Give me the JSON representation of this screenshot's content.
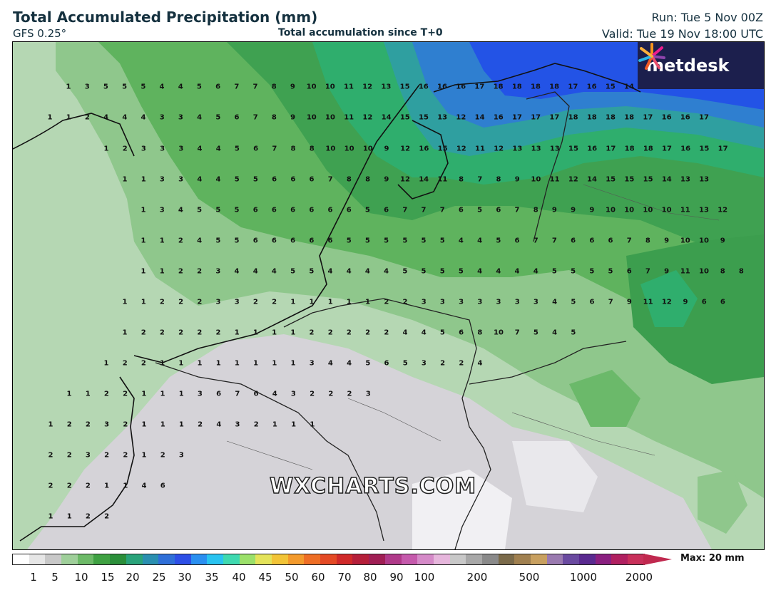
{
  "header": {
    "title": "Total Accumulated Precipitation (mm)",
    "model": "GFS 0.25°",
    "subtitle": "Total accumulation since T+0",
    "run": "Run: Tue 5 Nov 00Z",
    "valid": "Valid: Tue 19 Nov 18:00 UTC"
  },
  "logo": {
    "text": "metdesk"
  },
  "watermark": "WXCHARTS.COM",
  "legend": {
    "ticks": [
      "1",
      "5",
      "10",
      "15",
      "20",
      "25",
      "30",
      "35",
      "40",
      "45",
      "50",
      "60",
      "70",
      "80",
      "90",
      "100",
      "200",
      "500",
      "1000",
      "2000"
    ],
    "max_label": "Max: 20 mm"
  },
  "grid_values": [
    [
      "1",
      "3",
      "5",
      "5",
      "5",
      "4",
      "4",
      "5",
      "6",
      "7",
      "7",
      "8",
      "9",
      "10",
      "10",
      "11",
      "12",
      "13",
      "15",
      "16",
      "16",
      "16",
      "17",
      "18",
      "18",
      "18",
      "18",
      "17",
      "16",
      "15",
      "14"
    ],
    [
      "1",
      "1",
      "2",
      "4",
      "4",
      "4",
      "3",
      "3",
      "4",
      "5",
      "6",
      "7",
      "8",
      "9",
      "10",
      "10",
      "11",
      "12",
      "14",
      "15",
      "15",
      "13",
      "12",
      "14",
      "16",
      "17",
      "17",
      "17",
      "18",
      "18",
      "18",
      "18",
      "17",
      "16",
      "16",
      "17"
    ],
    [
      "1",
      "2",
      "3",
      "3",
      "3",
      "4",
      "4",
      "5",
      "6",
      "7",
      "8",
      "8",
      "10",
      "10",
      "10",
      "9",
      "12",
      "16",
      "15",
      "12",
      "11",
      "12",
      "13",
      "13",
      "13",
      "15",
      "16",
      "17",
      "18",
      "18",
      "17",
      "16",
      "15",
      "17"
    ],
    [
      "1",
      "1",
      "3",
      "3",
      "4",
      "4",
      "5",
      "5",
      "6",
      "6",
      "6",
      "7",
      "8",
      "8",
      "9",
      "12",
      "14",
      "11",
      "8",
      "7",
      "8",
      "9",
      "10",
      "11",
      "12",
      "14",
      "15",
      "15",
      "15",
      "14",
      "13",
      "13"
    ],
    [
      "1",
      "3",
      "4",
      "5",
      "5",
      "5",
      "6",
      "6",
      "6",
      "6",
      "6",
      "6",
      "5",
      "6",
      "7",
      "7",
      "7",
      "6",
      "5",
      "6",
      "7",
      "8",
      "9",
      "9",
      "9",
      "10",
      "10",
      "10",
      "10",
      "11",
      "13",
      "12"
    ],
    [
      "1",
      "1",
      "2",
      "4",
      "5",
      "5",
      "6",
      "6",
      "6",
      "6",
      "6",
      "5",
      "5",
      "5",
      "5",
      "5",
      "5",
      "4",
      "4",
      "5",
      "6",
      "7",
      "7",
      "6",
      "6",
      "6",
      "7",
      "8",
      "9",
      "10",
      "10",
      "9"
    ],
    [
      "1",
      "1",
      "2",
      "2",
      "3",
      "4",
      "4",
      "4",
      "5",
      "5",
      "4",
      "4",
      "4",
      "4",
      "5",
      "5",
      "5",
      "5",
      "4",
      "4",
      "4",
      "4",
      "5",
      "5",
      "5",
      "5",
      "6",
      "7",
      "9",
      "11",
      "10",
      "8",
      "8"
    ],
    [
      "1",
      "1",
      "2",
      "2",
      "2",
      "3",
      "3",
      "2",
      "2",
      "1",
      "1",
      "1",
      "1",
      "1",
      "2",
      "2",
      "3",
      "3",
      "3",
      "3",
      "3",
      "3",
      "3",
      "4",
      "5",
      "6",
      "7",
      "9",
      "11",
      "12",
      "9",
      "6",
      "6"
    ],
    [
      "1",
      "2",
      "2",
      "2",
      "2",
      "2",
      "1",
      "1",
      "1",
      "1",
      "2",
      "2",
      "2",
      "2",
      "2",
      "4",
      "4",
      "5",
      "6",
      "8",
      "10",
      "7",
      "5",
      "4",
      "5"
    ],
    [
      "1",
      "2",
      "2",
      "1",
      "1",
      "1",
      "1",
      "1",
      "1",
      "1",
      "1",
      "3",
      "4",
      "4",
      "5",
      "6",
      "5",
      "3",
      "2",
      "2",
      "4"
    ],
    [
      "1",
      "1",
      "2",
      "2",
      "1",
      "1",
      "1",
      "3",
      "6",
      "7",
      "6",
      "4",
      "3",
      "2",
      "2",
      "2",
      "3"
    ],
    [
      "1",
      "2",
      "2",
      "3",
      "2",
      "1",
      "1",
      "1",
      "2",
      "4",
      "3",
      "2",
      "1",
      "1",
      "1"
    ],
    [
      "2",
      "2",
      "3",
      "2",
      "2",
      "1",
      "2",
      "3"
    ],
    [
      "2",
      "2",
      "2",
      "1",
      "1",
      "4",
      "6"
    ],
    [
      "1",
      "1",
      "2",
      "2"
    ]
  ]
}
